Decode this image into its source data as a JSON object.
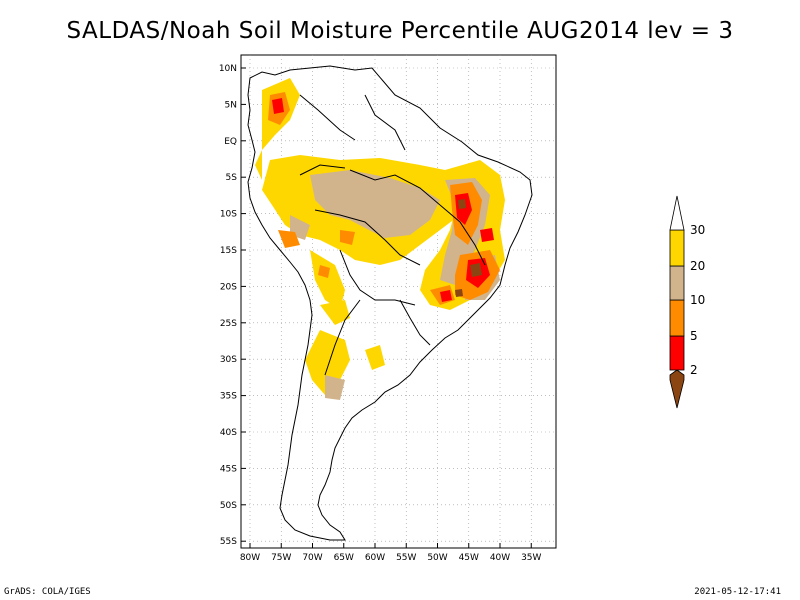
{
  "title": "SALDAS/Noah Soil Moisture Percentile AUG2014 lev = 3",
  "footer": {
    "left": "GrADS: COLA/IGES",
    "right": "2021-05-12-17:41"
  },
  "lat_ticks": [
    "10N",
    "5N",
    "EQ",
    "5S",
    "10S",
    "15S",
    "20S",
    "25S",
    "30S",
    "35S",
    "40S",
    "45S",
    "50S",
    "55S"
  ],
  "lon_ticks": [
    "80W",
    "75W",
    "70W",
    "65W",
    "60W",
    "55W",
    "50W",
    "45W",
    "40W",
    "35W"
  ],
  "colorbar": {
    "levels": [
      "2",
      "5",
      "10",
      "20",
      "30"
    ],
    "colors": [
      "#8b4513",
      "#ff0000",
      "#ff8c00",
      "#d2b48c",
      "#ffd700",
      "#ffffff"
    ]
  },
  "legend_colors": {
    "percentile_0_2": "#8b4513",
    "percentile_2_5": "#ff0000",
    "percentile_5_10": "#ff8c00",
    "percentile_10_20": "#d2b48c",
    "percentile_20_30": "#ffd700"
  }
}
